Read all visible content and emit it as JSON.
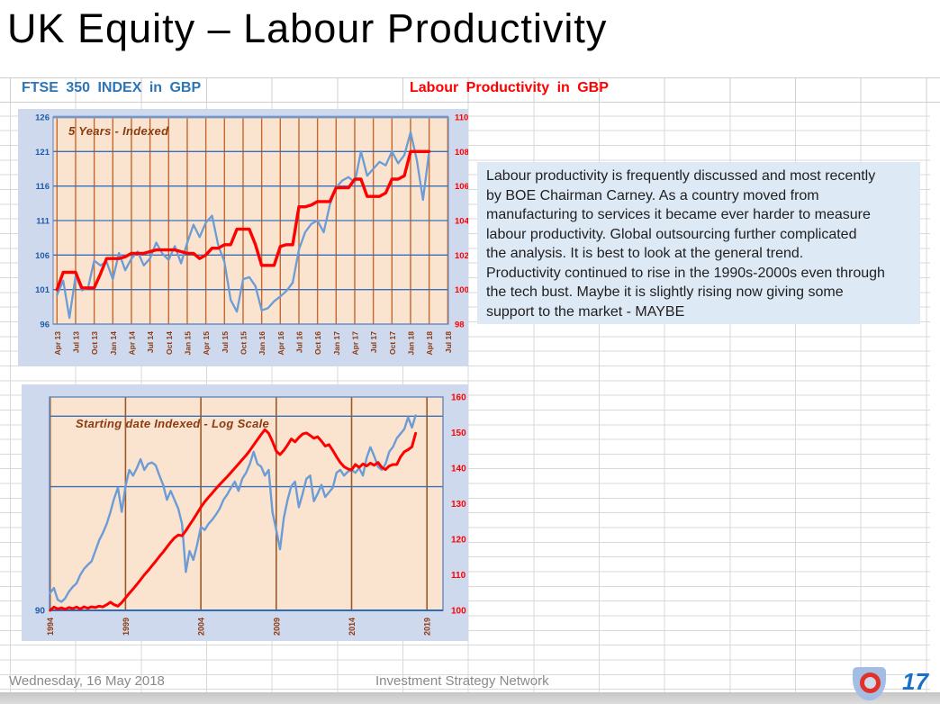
{
  "slide": {
    "title": "UK Equity – Labour Productivity"
  },
  "header": {
    "left_title": "FTSE 350 INDEX in GBP",
    "right_title": "Labour Productivity in GBP",
    "left_color": "#2e75b6",
    "right_color": "#ff0000"
  },
  "note_box": {
    "bg_color": "#dee9f6",
    "lines": [
      "Labour productivity is frequently discussed and most recently",
      "by BOE Chairman Carney.  As a country moved from",
      "manufacturing to services it became ever harder to measure",
      "labour productivity.  Global outsourcing further complicated",
      "the analysis.  It is best to look at the general trend.",
      "Productivity continued to rise in the 1990s-2000s even through",
      "the tech bust.  Maybe it is slightly rising now giving some",
      "support to the market - MAYBE"
    ]
  },
  "footer": {
    "date": "Wednesday, 16 May 2018",
    "org": "Investment Strategy Network",
    "page": "17",
    "logo": "shield-ring-logo",
    "page_color": "#1b6fc5"
  },
  "chart_data": [
    {
      "type": "line",
      "title": "5 Years - Indexed",
      "x_labels": [
        "Apr 13",
        "Jul 13",
        "Oct 13",
        "Jan 14",
        "Apr 14",
        "Jul 14",
        "Oct 14",
        "Jan 15",
        "Apr 15",
        "Jul 15",
        "Oct 15",
        "Jan 16",
        "Apr 16",
        "Jul 16",
        "Oct 16",
        "Jan 17",
        "Apr 17",
        "Jul 17",
        "Oct 17",
        "Jan 18",
        "Apr 18",
        "Jul 18"
      ],
      "x_frequency": "monthly",
      "left_axis": {
        "name": "FTSE 350 INDEX",
        "min": 96,
        "max": 126,
        "ticks": [
          96,
          101,
          106,
          111,
          116,
          121,
          126
        ],
        "color": "#1f5ba8"
      },
      "right_axis": {
        "name": "Labour Productivity",
        "min": 98,
        "max": 110,
        "ticks": [
          98,
          100,
          102,
          104,
          106,
          108,
          110
        ],
        "color": "#ff0000"
      },
      "series": [
        {
          "name": "FTSE 350 INDEX in GBP",
          "axis": "left",
          "color": "#6b9cd6",
          "width": 2.3,
          "values": [
            100.2,
            102.3,
            96.9,
            103.0,
            100.9,
            101.2,
            105.2,
            104.5,
            105.0,
            102.5,
            106.3,
            103.8,
            105.5,
            106.5,
            104.5,
            105.5,
            107.8,
            106.2,
            105.3,
            107.3,
            104.8,
            107.8,
            110.4,
            108.6,
            110.7,
            111.7,
            107.4,
            105.0,
            99.5,
            97.8,
            102.5,
            102.8,
            101.5,
            98.0,
            98.3,
            99.3,
            100.0,
            100.8,
            102.0,
            106.8,
            109.3,
            110.5,
            111.0,
            109.3,
            113.3,
            115.8,
            116.8,
            117.3,
            116.5,
            121.0,
            117.5,
            118.5,
            119.5,
            119.0,
            121.0,
            119.3,
            120.5,
            123.8,
            119.8,
            114.0,
            121.0
          ]
        },
        {
          "name": "Labour Productivity in GBP",
          "axis": "right",
          "color": "#fe0000",
          "width": 3.4,
          "values": [
            100.0,
            101.0,
            101.0,
            101.0,
            100.1,
            100.1,
            100.1,
            100.9,
            101.8,
            101.8,
            101.8,
            101.9,
            102.1,
            102.1,
            102.1,
            102.2,
            102.3,
            102.3,
            102.3,
            102.3,
            102.2,
            102.1,
            102.1,
            101.8,
            102.0,
            102.4,
            102.4,
            102.6,
            102.6,
            103.5,
            103.5,
            103.5,
            102.6,
            101.4,
            101.4,
            101.4,
            102.5,
            102.6,
            102.6,
            104.8,
            104.8,
            104.9,
            105.1,
            105.1,
            105.1,
            105.9,
            105.9,
            105.9,
            106.4,
            106.4,
            105.4,
            105.4,
            105.4,
            105.6,
            106.4,
            106.4,
            106.6,
            108.0,
            108.0,
            108.0,
            108.0
          ]
        }
      ],
      "grid": {
        "plot_bg": "#fae4d0",
        "v_color": "#c4682e",
        "h_color": "#3a6fb7",
        "top_border_color": "#93a9cd",
        "border_color": "#5a82be"
      }
    },
    {
      "type": "line",
      "title": "Starting date Indexed - Log Scale",
      "x_labels": [
        "1994",
        "1999",
        "2004",
        "2009",
        "2014",
        "2019"
      ],
      "x_start": 1994,
      "x_step": 0.25,
      "x_axis_end": 2020,
      "left_axis": {
        "name": "FTSE 350 INDEX",
        "bottom_label": "90",
        "scale": "log",
        "color": "#1f5ba8"
      },
      "right_axis": {
        "name": "Labour Productivity",
        "min": 100,
        "max": 160,
        "ticks": [
          100,
          110,
          120,
          130,
          140,
          150,
          160
        ],
        "color": "#ff0000"
      },
      "hgrid_values": [
        154.6,
        134.8
      ],
      "series": [
        {
          "name": "FTSE 350 INDEX in GBP",
          "color": "#6b9cd6",
          "width": 2.4,
          "values": [
            104.9,
            106.3,
            103.0,
            102.4,
            103.4,
            105.3,
            106.6,
            107.6,
            110.0,
            111.7,
            112.8,
            113.8,
            116.7,
            119.7,
            121.8,
            124.3,
            127.7,
            131.5,
            134.5,
            127.7,
            134.9,
            139.5,
            137.9,
            140.0,
            142.5,
            139.5,
            141.2,
            141.6,
            140.8,
            137.9,
            135.3,
            131.1,
            133.6,
            131.1,
            128.6,
            124.3,
            110.8,
            116.7,
            114.2,
            118.4,
            123.5,
            122.6,
            124.3,
            125.5,
            126.9,
            128.6,
            131.1,
            132.6,
            134.5,
            136.2,
            133.6,
            137.0,
            138.7,
            141.2,
            144.6,
            141.2,
            140.4,
            137.9,
            139.5,
            127.7,
            122.6,
            117.2,
            126.0,
            131.1,
            134.9,
            136.2,
            129.0,
            132.8,
            137.0,
            137.9,
            130.7,
            132.8,
            135.3,
            131.9,
            133.2,
            134.5,
            138.7,
            139.5,
            137.9,
            139.0,
            139.5,
            138.7,
            140.0,
            137.9,
            142.9,
            145.9,
            143.4,
            140.4,
            139.5,
            141.2,
            144.6,
            146.0,
            148.4,
            149.7,
            151.0,
            154.3,
            151.4,
            154.8
          ]
        },
        {
          "name": "Labour Productivity in GBP",
          "color": "#fe0000",
          "width": 3.0,
          "values": [
            100.0,
            100.9,
            100.4,
            100.7,
            100.3,
            100.8,
            100.5,
            100.9,
            100.4,
            101.0,
            100.6,
            101.0,
            100.8,
            101.2,
            101.0,
            101.6,
            102.3,
            101.6,
            101.2,
            102.2,
            103.5,
            104.8,
            106.0,
            107.3,
            108.6,
            110.0,
            111.2,
            112.5,
            113.8,
            115.2,
            116.4,
            117.8,
            119.2,
            120.4,
            121.2,
            121.0,
            122.4,
            124.0,
            125.6,
            127.3,
            129.0,
            130.5,
            131.8,
            133.0,
            134.2,
            135.4,
            136.5,
            137.6,
            138.8,
            140.0,
            141.2,
            142.4,
            143.6,
            145.0,
            146.5,
            148.0,
            149.5,
            150.8,
            149.8,
            147.5,
            144.8,
            143.8,
            145.0,
            146.5,
            148.2,
            147.4,
            148.6,
            149.6,
            149.9,
            149.2,
            148.4,
            148.8,
            147.6,
            146.2,
            146.6,
            145.0,
            143.2,
            141.6,
            140.4,
            139.8,
            139.5,
            141.0,
            140.2,
            141.2,
            140.6,
            141.4,
            140.8,
            141.6,
            140.2,
            139.6,
            140.6,
            141.0,
            141.0,
            143.2,
            144.6,
            145.2,
            146.0,
            149.8
          ]
        }
      ],
      "grid": {
        "plot_bg": "#fae4d0",
        "v_color": "#9a5a28",
        "h_color": "#3a6fb7",
        "border_color": "#5a82be"
      }
    }
  ]
}
